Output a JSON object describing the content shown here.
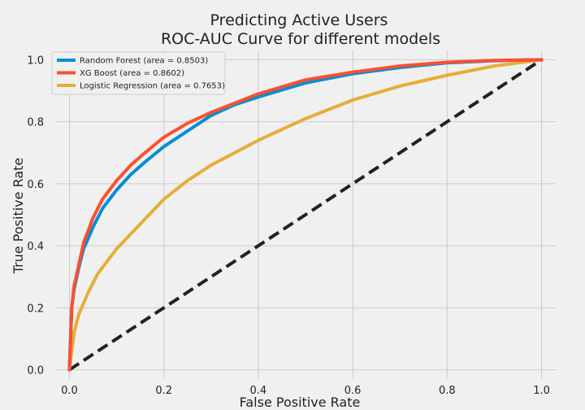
{
  "chart_data": {
    "type": "line",
    "title": "Predicting Active Users",
    "subtitle": "ROC-AUC Curve for different models",
    "xlabel": "False Positive Rate",
    "ylabel": "True Positive Rate",
    "xlim": [
      -0.03,
      1.03
    ],
    "ylim": [
      -0.03,
      1.03
    ],
    "xticks": [
      "0.0",
      "0.2",
      "0.4",
      "0.6",
      "0.8",
      "1.0"
    ],
    "yticks": [
      "0.0",
      "0.2",
      "0.4",
      "0.6",
      "0.8",
      "1.0"
    ],
    "grid": true,
    "legend_position": "top-left",
    "series": [
      {
        "name": "Random Forest (area = 0.8503)",
        "color": "#008fd5",
        "x": [
          0.0,
          0.005,
          0.01,
          0.02,
          0.03,
          0.05,
          0.07,
          0.1,
          0.13,
          0.16,
          0.2,
          0.25,
          0.3,
          0.35,
          0.4,
          0.5,
          0.6,
          0.7,
          0.8,
          0.9,
          1.0
        ],
        "y": [
          0.0,
          0.2,
          0.26,
          0.33,
          0.39,
          0.46,
          0.52,
          0.58,
          0.63,
          0.67,
          0.72,
          0.77,
          0.82,
          0.855,
          0.88,
          0.925,
          0.955,
          0.975,
          0.99,
          0.997,
          1.0
        ]
      },
      {
        "name": "XG Boost (area = 0.8602)",
        "color": "#fc4f30",
        "x": [
          0.0,
          0.005,
          0.01,
          0.02,
          0.03,
          0.05,
          0.07,
          0.1,
          0.13,
          0.16,
          0.2,
          0.25,
          0.3,
          0.35,
          0.4,
          0.5,
          0.6,
          0.7,
          0.8,
          0.9,
          1.0
        ],
        "y": [
          0.0,
          0.2,
          0.27,
          0.34,
          0.41,
          0.49,
          0.55,
          0.61,
          0.66,
          0.7,
          0.75,
          0.795,
          0.83,
          0.86,
          0.89,
          0.935,
          0.96,
          0.98,
          0.992,
          0.998,
          1.0
        ]
      },
      {
        "name": "Logistic Regression (area = 0.7653)",
        "color": "#e5ae38",
        "x": [
          0.0,
          0.01,
          0.02,
          0.04,
          0.06,
          0.1,
          0.15,
          0.2,
          0.25,
          0.3,
          0.35,
          0.4,
          0.5,
          0.6,
          0.7,
          0.8,
          0.9,
          1.0
        ],
        "y": [
          0.0,
          0.12,
          0.18,
          0.25,
          0.31,
          0.39,
          0.47,
          0.55,
          0.61,
          0.66,
          0.7,
          0.74,
          0.81,
          0.87,
          0.915,
          0.95,
          0.98,
          1.0
        ]
      }
    ],
    "reference_line": {
      "style": "dashed",
      "color": "#222222",
      "x": [
        0,
        1
      ],
      "y": [
        0,
        1
      ]
    }
  }
}
